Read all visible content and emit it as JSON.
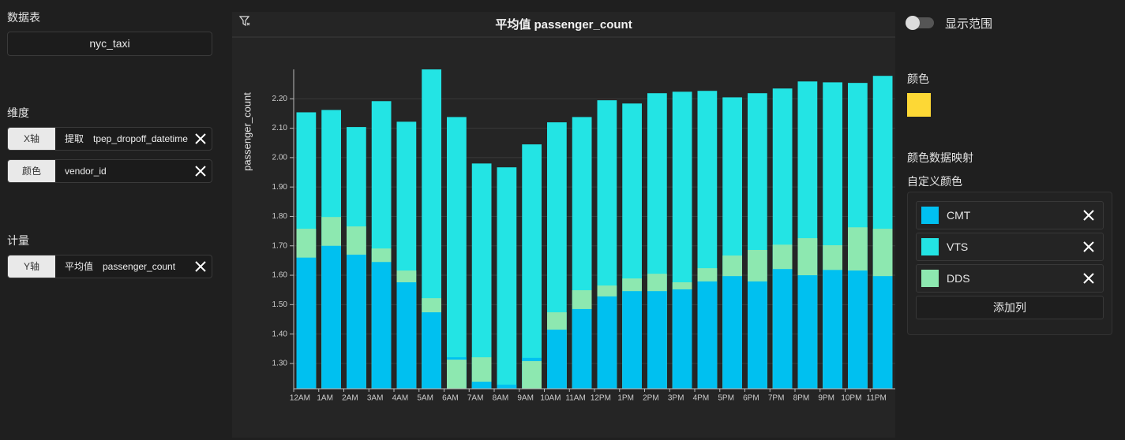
{
  "sidebar": {
    "data_table_label": "数据表",
    "data_table": "nyc_taxi",
    "dimension_label": "维度",
    "dimensions": [
      {
        "role": "X轴",
        "func": "提取",
        "field": "tpep_dropoff_datetime"
      },
      {
        "role": "颜色",
        "field": "vendor_id"
      }
    ],
    "measure_label": "计量",
    "measures": [
      {
        "role": "Y轴",
        "func": "平均值",
        "field": "passenger_count"
      }
    ]
  },
  "settings": {
    "toggle_label": "显示范围",
    "color_label": "颜色",
    "color_swatch": "#fdd835",
    "mapping_label": "颜色数据映射",
    "custom_label": "自定义颜色",
    "add_button": "添加列"
  },
  "chart_data": {
    "type": "bar",
    "title": "平均值 passenger_count",
    "y_label": "passenger_count",
    "categories": [
      "12AM",
      "1AM",
      "2AM",
      "3AM",
      "4AM",
      "5AM",
      "6AM",
      "7AM",
      "8AM",
      "9AM",
      "10AM",
      "11AM",
      "12PM",
      "1PM",
      "2PM",
      "3PM",
      "4PM",
      "5PM",
      "6PM",
      "7PM",
      "8PM",
      "9PM",
      "10PM",
      "11PM"
    ],
    "series": [
      {
        "name": "CMT",
        "color": "#00c0f0",
        "values": [
          1.66,
          1.7,
          1.67,
          1.645,
          1.576,
          1.474,
          1.321,
          1.238,
          1.228,
          1.319,
          1.415,
          1.485,
          1.528,
          1.546,
          1.546,
          1.552,
          1.579,
          1.597,
          1.579,
          1.621,
          1.6,
          1.618,
          1.616,
          1.597
        ]
      },
      {
        "name": "VTS",
        "color": "#23e4e4",
        "values": [
          2.154,
          2.162,
          2.104,
          2.192,
          2.122,
          2.3,
          2.138,
          1.98,
          1.967,
          2.045,
          2.12,
          2.138,
          2.195,
          2.184,
          2.219,
          2.224,
          2.227,
          2.205,
          2.219,
          2.235,
          2.259,
          2.256,
          2.254,
          2.278
        ]
      },
      {
        "name": "DDS",
        "color": "#8de8b0",
        "values": [
          1.758,
          1.798,
          1.766,
          1.691,
          1.616,
          1.522,
          1.313,
          1.321,
          null,
          1.308,
          1.474,
          1.549,
          1.565,
          1.589,
          1.605,
          1.576,
          1.624,
          1.667,
          1.686,
          1.704,
          1.726,
          1.702,
          1.763,
          1.758
        ]
      }
    ],
    "ylim": [
      1.214,
      2.3
    ],
    "yticks": [
      {
        "value": 1.3,
        "label": "1.30"
      },
      {
        "value": 1.4,
        "label": "1.40"
      },
      {
        "value": 1.5,
        "label": "1.50"
      },
      {
        "value": 1.6,
        "label": "1.60"
      },
      {
        "value": 1.7,
        "label": "1.70"
      },
      {
        "value": 1.8,
        "label": "1.80"
      },
      {
        "value": 1.9,
        "label": "1.90"
      },
      {
        "value": 2,
        "label": "2.00"
      },
      {
        "value": 2.1,
        "label": "2.10"
      },
      {
        "value": 2.2,
        "label": "2.20"
      }
    ],
    "grid": true
  }
}
